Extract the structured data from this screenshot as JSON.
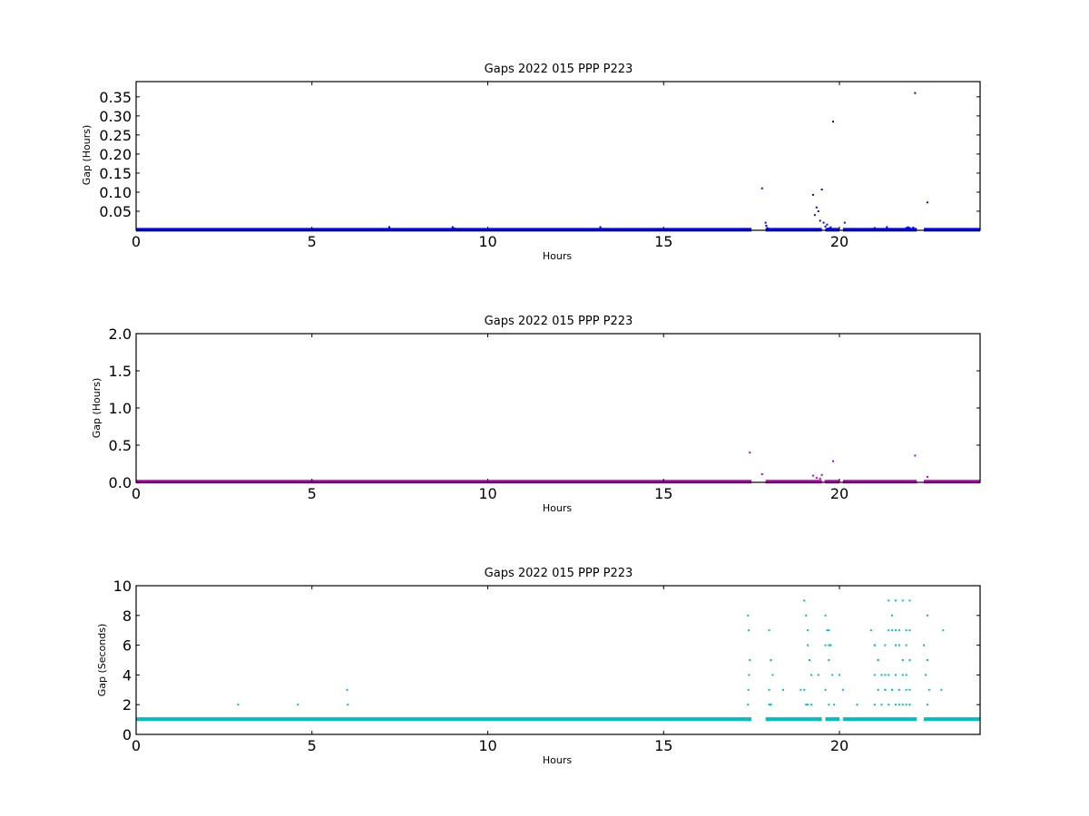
{
  "chart_data": [
    {
      "type": "scatter",
      "title": "Gaps 2022 015 PPP  P223",
      "xlabel": "Hours",
      "ylabel": "Gap (Hours)",
      "xlim": [
        0,
        24
      ],
      "ylim": [
        0,
        0.39
      ],
      "xticks": [
        "0",
        "5",
        "10",
        "15",
        "20"
      ],
      "yticks": [
        "0.05",
        "0.10",
        "0.15",
        "0.20",
        "0.25",
        "0.30",
        "0.35"
      ],
      "ytick_values": [
        0.05,
        0.1,
        0.15,
        0.2,
        0.25,
        0.3,
        0.35
      ],
      "xtick_values": [
        0,
        5,
        10,
        15,
        20
      ],
      "color": "#0000ff",
      "baseline": {
        "y": 0.0003,
        "segments": [
          [
            0,
            17.5
          ],
          [
            17.9,
            19.5
          ],
          [
            19.6,
            20.0
          ],
          [
            20.1,
            22.2
          ],
          [
            22.4,
            24
          ]
        ]
      },
      "x": [
        7.2,
        9.0,
        9.05,
        13.2,
        17.8,
        17.9,
        17.92,
        17.95,
        19.25,
        19.3,
        19.35,
        19.4,
        19.45,
        19.5,
        19.55,
        19.6,
        19.65,
        19.7,
        19.75,
        19.82,
        20.15,
        21.0,
        21.35,
        21.9,
        21.95,
        22.0,
        22.1,
        22.15,
        22.5
      ],
      "y": [
        0.0083,
        0.0083,
        0.005,
        0.0083,
        0.11,
        0.02,
        0.012,
        0.006,
        0.093,
        0.04,
        0.06,
        0.05,
        0.025,
        0.107,
        0.02,
        0.01,
        0.015,
        0.005,
        0.008,
        0.285,
        0.02,
        0.006,
        0.0083,
        0.006,
        0.008,
        0.006,
        0.007,
        0.36,
        0.073
      ]
    },
    {
      "type": "scatter",
      "title": "Gaps 2022 015 PPP  P223",
      "xlabel": "Hours",
      "ylabel": "Gap (Hours)",
      "xlim": [
        0,
        24
      ],
      "ylim": [
        0,
        2.0
      ],
      "xticks": [
        "0",
        "5",
        "10",
        "15",
        "20"
      ],
      "yticks": [
        "0.0",
        "0.5",
        "1.0",
        "1.5",
        "2.0"
      ],
      "ytick_values": [
        0,
        0.5,
        1.0,
        1.5,
        2.0
      ],
      "xtick_values": [
        0,
        5,
        10,
        15,
        20
      ],
      "color": "#bf00bf",
      "baseline": {
        "y": 0.003,
        "segments": [
          [
            0,
            17.5
          ],
          [
            17.9,
            19.5
          ],
          [
            19.6,
            20.0
          ],
          [
            20.1,
            22.2
          ],
          [
            22.4,
            24
          ]
        ]
      },
      "x": [
        17.45,
        17.8,
        19.25,
        19.35,
        19.45,
        19.5,
        19.6,
        19.82,
        20.15,
        22.15,
        22.5
      ],
      "y": [
        0.4,
        0.11,
        0.09,
        0.06,
        0.05,
        0.1,
        0.02,
        0.285,
        0.02,
        0.36,
        0.073
      ]
    },
    {
      "type": "scatter",
      "title": "Gaps 2022 015 PPP  P223",
      "xlabel": "Hours",
      "ylabel": "Gap (Seconds)",
      "xlim": [
        0,
        24
      ],
      "ylim": [
        0,
        10
      ],
      "xticks": [
        "0",
        "5",
        "10",
        "15",
        "20"
      ],
      "yticks": [
        "0",
        "2",
        "4",
        "6",
        "8",
        "10"
      ],
      "ytick_values": [
        0,
        2,
        4,
        6,
        8,
        10
      ],
      "xtick_values": [
        0,
        5,
        10,
        15,
        20
      ],
      "color": "#00bfbf",
      "baseline": {
        "y": 1,
        "segments": [
          [
            0,
            17.5
          ],
          [
            17.9,
            19.5
          ],
          [
            19.6,
            20.0
          ],
          [
            20.1,
            22.2
          ],
          [
            22.4,
            24
          ]
        ]
      },
      "x": [
        2.9,
        4.6,
        6.0,
        6.02,
        17.4,
        17.42,
        17.45,
        17.43,
        17.41,
        17.4,
        18.0,
        18.05,
        18.1,
        18.0,
        18.05,
        18.0,
        18.05,
        18.4,
        18.9,
        19.0,
        19.05,
        19.1,
        19.1,
        19.15,
        19.2,
        19.0,
        19.05,
        19.1,
        19.2,
        19.4,
        19.6,
        19.65,
        19.7,
        19.75,
        19.6,
        19.7,
        19.8,
        19.6,
        19.7,
        19.85,
        19.7,
        19.75,
        20.0,
        20.1,
        20.5,
        20.9,
        21.0,
        21.1,
        21.2,
        21.3,
        21.4,
        21.5,
        21.6,
        21.7,
        21.8,
        21.9,
        22.0,
        21.1,
        21.3,
        21.5,
        21.7,
        21.9,
        22.0,
        21.0,
        21.2,
        21.4,
        21.6,
        21.8,
        22.0,
        21.1,
        21.3,
        21.5,
        21.7,
        21.9,
        21.0,
        21.2,
        21.4,
        21.6,
        21.8,
        22.0,
        21.0,
        21.3,
        21.6,
        21.9,
        21.4,
        21.6,
        21.8,
        22.0,
        21.5,
        21.7,
        21.9,
        22.0,
        22.5,
        22.4,
        22.5,
        22.45,
        22.55,
        22.5,
        22.9,
        22.95
      ],
      "y": [
        2,
        2,
        3,
        2,
        8,
        7,
        5,
        4,
        3,
        2,
        7,
        5,
        4,
        3,
        2,
        2,
        2,
        3,
        3,
        9,
        8,
        7,
        6,
        5,
        4,
        3,
        2,
        2,
        2,
        4,
        8,
        7,
        7,
        6,
        6,
        5,
        4,
        3,
        2,
        2,
        6,
        6,
        4,
        3,
        2,
        7,
        6,
        5,
        4,
        3,
        7,
        8,
        7,
        6,
        5,
        4,
        3,
        5,
        4,
        3,
        2,
        2,
        2,
        2,
        2,
        2,
        2,
        2,
        2,
        3,
        3,
        3,
        3,
        3,
        4,
        4,
        4,
        4,
        4,
        5,
        6,
        6,
        6,
        6,
        9,
        9,
        9,
        9,
        7,
        7,
        7,
        7,
        8,
        6,
        5,
        4,
        3,
        2,
        3,
        7
      ]
    }
  ]
}
